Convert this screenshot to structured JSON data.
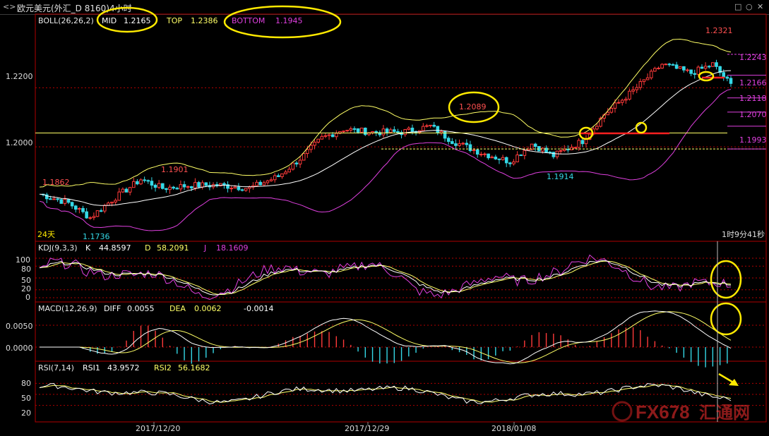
{
  "window": {
    "title": "欧元美元(外汇_D 8160)4小时",
    "title_icon": "back-arrows-icon",
    "controls": [
      "□",
      "○",
      "✕"
    ]
  },
  "colors": {
    "up": "#ff3a3a",
    "down": "#34d8e6",
    "mid": "#ffffff",
    "band": "#ffff66",
    "bottom": "#e040e0",
    "grid": "#b00000",
    "yellow": "#ffea00",
    "white": "#ffffff"
  },
  "main": {
    "boll_label": "BOLL(26,26,2)",
    "mid_label": "MID",
    "mid_value": "1.2165",
    "top_label": "TOP",
    "top_value": "1.2386",
    "bottom_label": "BOTTOM",
    "bottom_value": "1.1945",
    "y_ticks": [
      "1.2200",
      "1.2000"
    ],
    "price_labels": [
      "1.1862",
      "1.1901",
      "1.1736",
      "1.2089",
      "1.1914",
      "1.2321"
    ],
    "right_levels": [
      "1.2243",
      "1.2166",
      "1.2118",
      "1.2070",
      "1.1993"
    ],
    "bottom_left_text": "24天",
    "countdown_text": "1时9分41秒"
  },
  "kdj": {
    "label": "KDJ(9,3,3)",
    "k_label": "K",
    "k_value": "44.8597",
    "d_label": "D",
    "d_value": "58.2091",
    "j_label": "J",
    "j_value": "18.1609",
    "y_ticks": [
      "100",
      "80",
      "50",
      "20",
      "0"
    ]
  },
  "macd": {
    "label": "MACD(12,26,9)",
    "diff_label": "DIFF",
    "diff_value": "0.0055",
    "dea_label": "DEA",
    "dea_value": "0.0062",
    "macd_value": "-0.0014",
    "y_ticks": [
      "0.0050",
      "0.0000"
    ]
  },
  "rsi": {
    "label": "RSI(7,14)",
    "rsi1_label": "RSI1",
    "rsi1_value": "43.9572",
    "rsi2_label": "RSI2",
    "rsi2_value": "56.1682",
    "y_ticks": [
      "80",
      "50",
      "20"
    ]
  },
  "x_dates": [
    "2017/12/20",
    "2017/12/29",
    "2018/01/08"
  ],
  "watermark": {
    "brand": "FX678",
    "cn": "汇通网"
  },
  "chart_data": [
    {
      "type": "candlestick",
      "title": "BOLL(26,26,2)",
      "ylim": [
        1.168,
        1.245
      ],
      "y_ticks": [
        1.22,
        1.2
      ],
      "x_labels": [
        "2017/12/20",
        "2017/12/29",
        "2018/01/08"
      ],
      "key_points": [
        {
          "label": "1.1862",
          "value": 1.1862
        },
        {
          "label": "1.1901",
          "value": 1.1901
        },
        {
          "label": "1.1736",
          "value": 1.1736
        },
        {
          "label": "1.2089",
          "value": 1.2089
        },
        {
          "label": "1.1914",
          "value": 1.1914
        },
        {
          "label": "1.2321",
          "value": 1.2321
        }
      ],
      "levels": [
        1.2243,
        1.2166,
        1.2118,
        1.207,
        1.1993
      ],
      "close_anchors": [
        [
          0,
          1.184
        ],
        [
          8,
          1.181
        ],
        [
          14,
          1.176
        ],
        [
          20,
          1.182
        ],
        [
          28,
          1.189
        ],
        [
          34,
          1.186
        ],
        [
          42,
          1.187
        ],
        [
          50,
          1.187
        ],
        [
          58,
          1.186
        ],
        [
          66,
          1.19
        ],
        [
          72,
          1.196
        ],
        [
          78,
          1.203
        ],
        [
          84,
          1.206
        ],
        [
          92,
          1.205
        ],
        [
          100,
          1.205
        ],
        [
          108,
          1.207
        ],
        [
          114,
          1.202
        ],
        [
          122,
          1.198
        ],
        [
          130,
          1.195
        ],
        [
          136,
          1.201
        ],
        [
          142,
          1.197
        ],
        [
          150,
          1.202
        ],
        [
          156,
          1.211
        ],
        [
          164,
          1.219
        ],
        [
          172,
          1.228
        ],
        [
          180,
          1.225
        ],
        [
          186,
          1.228
        ],
        [
          191,
          1.221
        ]
      ]
    },
    {
      "type": "line",
      "title": "KDJ(9,3,3)",
      "ylim": [
        0,
        100
      ],
      "series": [
        {
          "name": "K",
          "last": 44.8597
        },
        {
          "name": "D",
          "last": 58.2091
        },
        {
          "name": "J",
          "last": 18.1609
        }
      ]
    },
    {
      "type": "bar",
      "title": "MACD(12,26,9)",
      "ylim": [
        -0.003,
        0.008
      ],
      "series": [
        {
          "name": "DIFF",
          "last": 0.0055
        },
        {
          "name": "DEA",
          "last": 0.0062
        },
        {
          "name": "MACD",
          "last": -0.0014
        }
      ]
    },
    {
      "type": "line",
      "title": "RSI(7,14)",
      "ylim": [
        0,
        100
      ],
      "series": [
        {
          "name": "RSI1",
          "last": 43.9572
        },
        {
          "name": "RSI2",
          "last": 56.1682
        }
      ]
    }
  ]
}
